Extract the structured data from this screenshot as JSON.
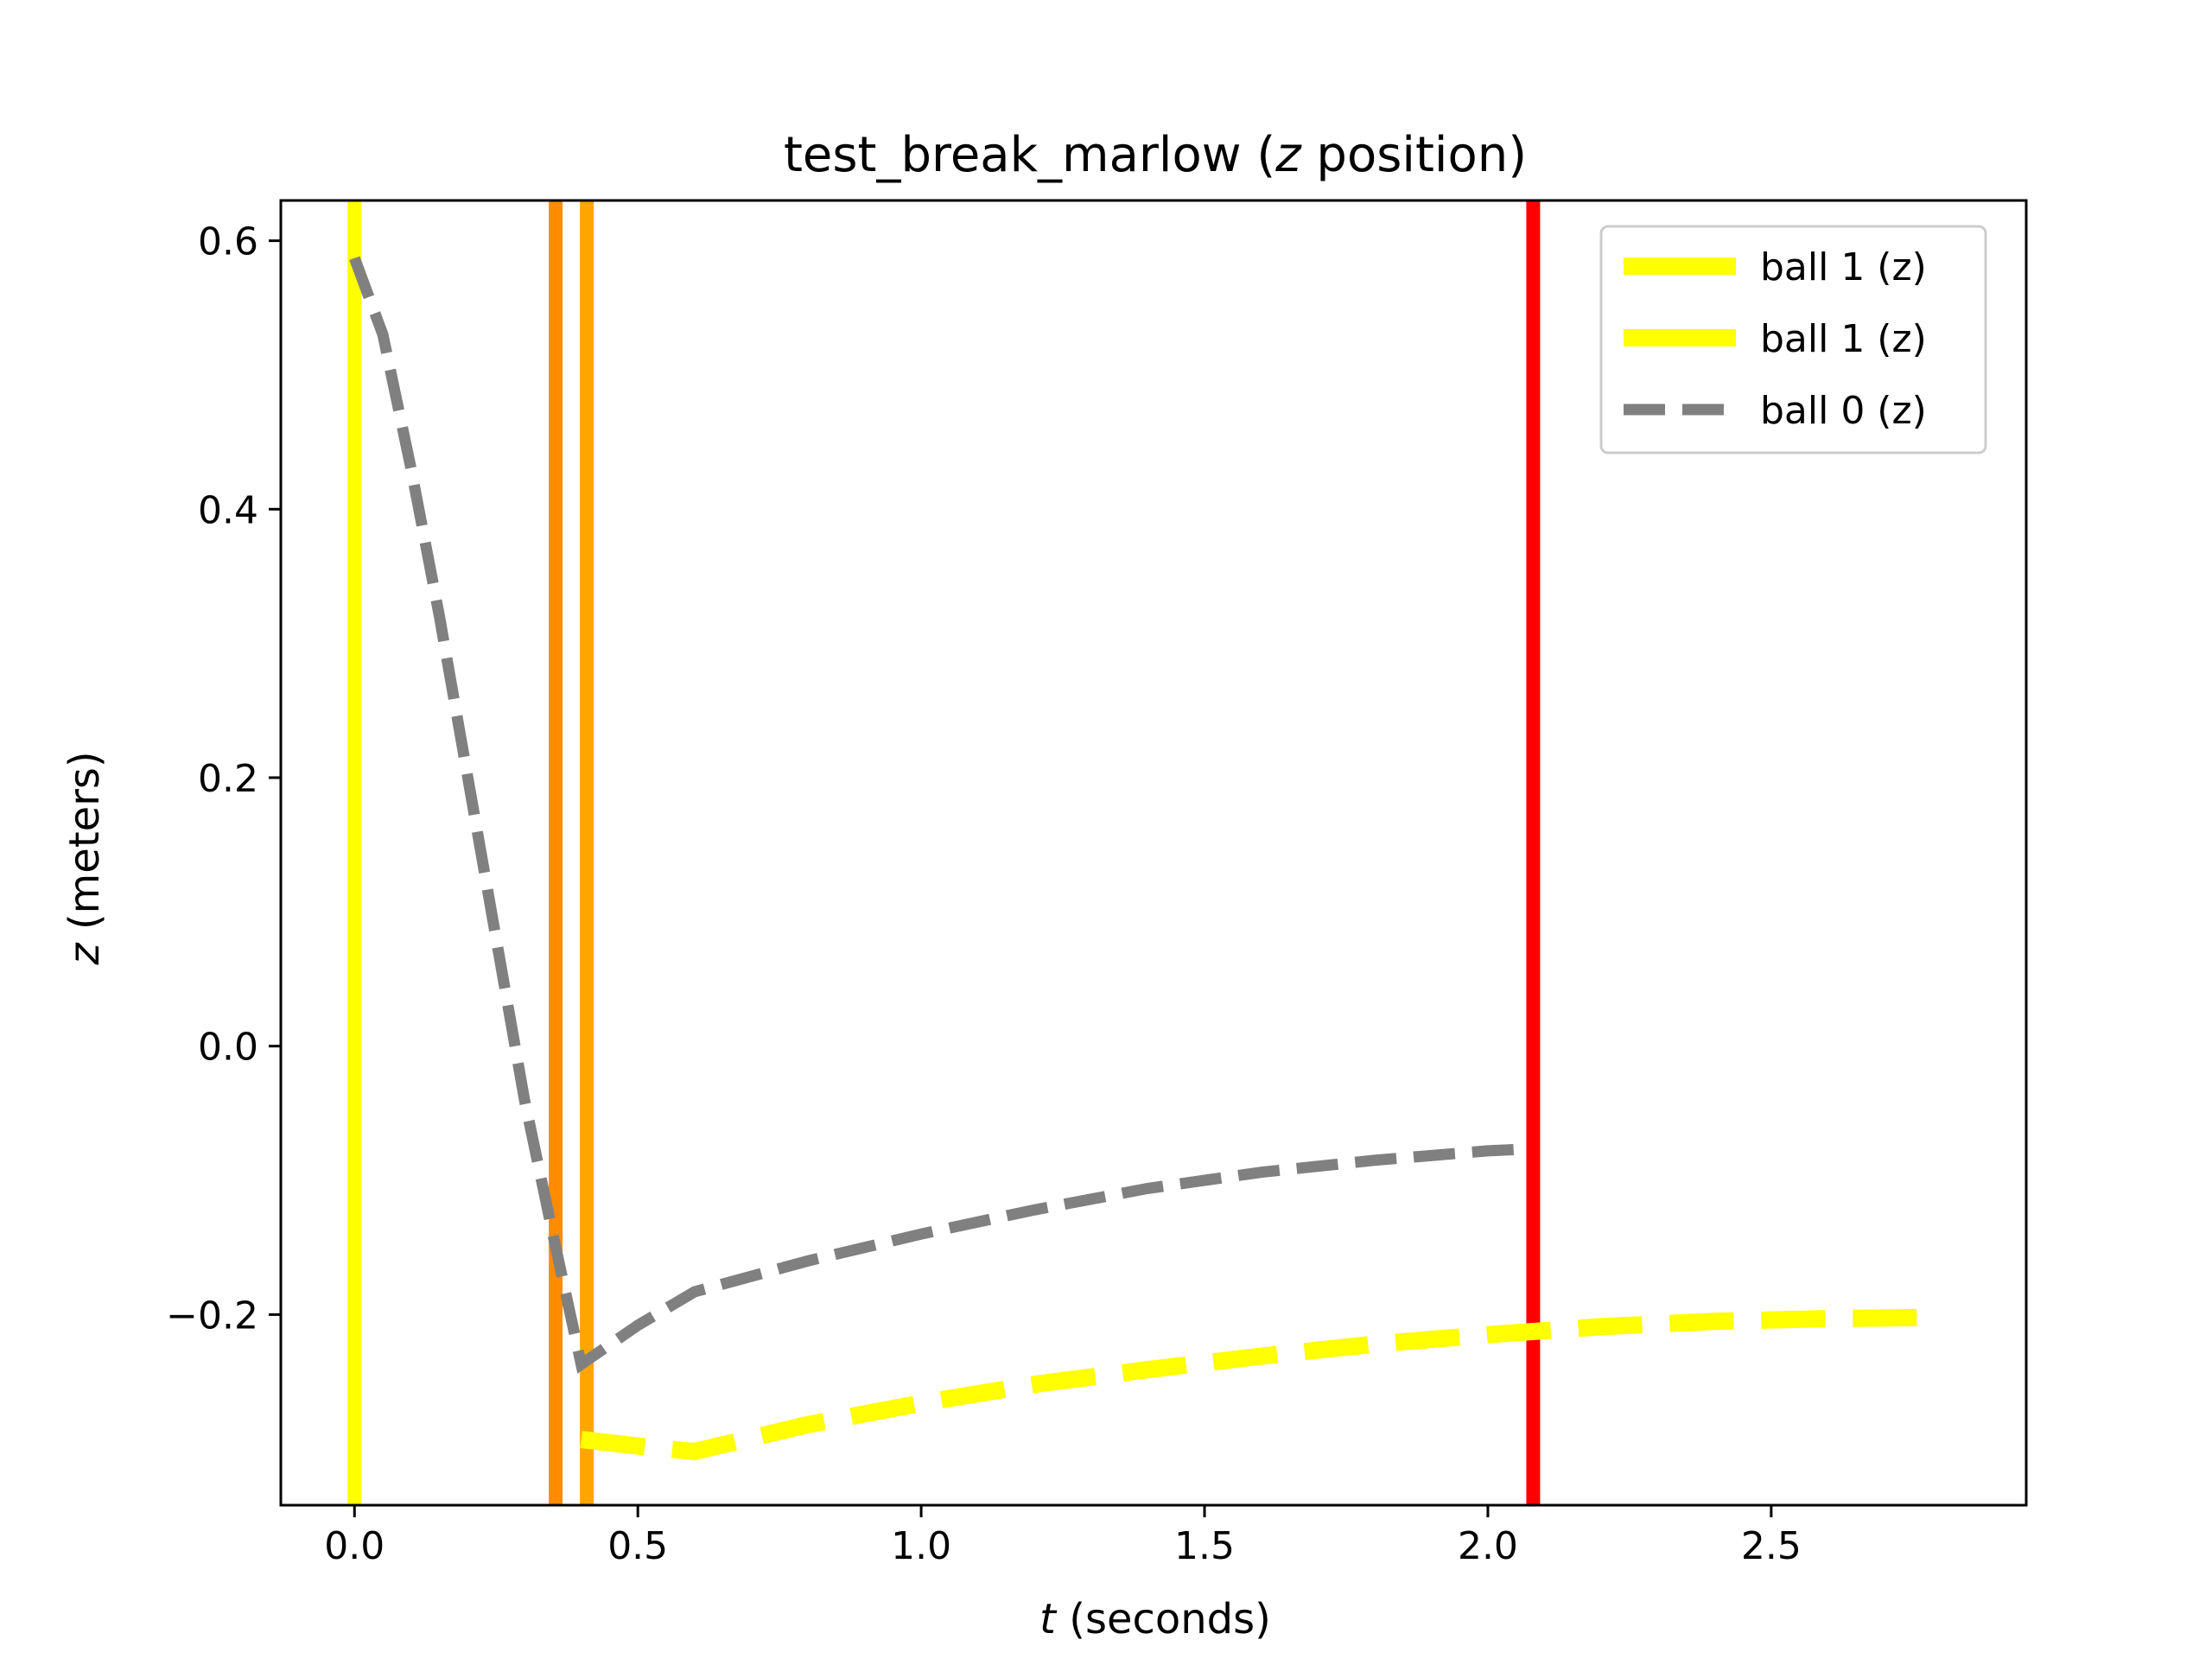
{
  "chart_data": {
    "type": "line",
    "title_main": "test_break_marlow (",
    "title_var": "z",
    "title_tail": " position)",
    "xlabel_var": "t",
    "xlabel_tail": " (seconds)",
    "ylabel_var": "z",
    "ylabel_tail": " (meters)",
    "xlim": [
      -0.13,
      2.95
    ],
    "ylim": [
      -0.342,
      0.63
    ],
    "xticks": [
      0.0,
      0.5,
      1.0,
      1.5,
      2.0,
      2.5
    ],
    "xtick_labels": [
      "0.0",
      "0.5",
      "1.0",
      "1.5",
      "2.0",
      "2.5"
    ],
    "yticks": [
      -0.2,
      0.0,
      0.2,
      0.4,
      0.6
    ],
    "ytick_labels": [
      "−0.2",
      "0.0",
      "0.2",
      "0.4",
      "0.6"
    ],
    "grid": false,
    "legend_position": "top-right",
    "vlines": [
      {
        "x": 0.0,
        "color": "#ffff00"
      },
      {
        "x": 0.355,
        "color": "#ff8c00"
      },
      {
        "x": 0.41,
        "color": "#ffa500"
      },
      {
        "x": 2.08,
        "color": "#ff0000"
      }
    ],
    "series": [
      {
        "name": "ball 1 (z)",
        "color": "#ffff00",
        "style": "dashed-thick",
        "points": []
      },
      {
        "name": "ball 1 (z)",
        "color": "#ffff00",
        "style": "dashed-thick",
        "points": [
          [
            0.4,
            -0.293
          ],
          [
            0.5,
            -0.298
          ],
          [
            0.6,
            -0.302
          ],
          [
            0.8,
            -0.282
          ],
          [
            1.0,
            -0.266
          ],
          [
            1.2,
            -0.252
          ],
          [
            1.4,
            -0.241
          ],
          [
            1.6,
            -0.231
          ],
          [
            1.8,
            -0.222
          ],
          [
            2.0,
            -0.215
          ],
          [
            2.2,
            -0.209
          ],
          [
            2.4,
            -0.205
          ],
          [
            2.6,
            -0.203
          ],
          [
            2.8,
            -0.202
          ]
        ]
      },
      {
        "name": "ball 0 (z)",
        "color": "#808080",
        "style": "dashed",
        "points": [
          [
            0.0,
            0.587
          ],
          [
            0.05,
            0.53
          ],
          [
            0.1,
            0.43
          ],
          [
            0.15,
            0.32
          ],
          [
            0.2,
            0.2
          ],
          [
            0.25,
            0.08
          ],
          [
            0.3,
            -0.04
          ],
          [
            0.35,
            -0.14
          ],
          [
            0.4,
            -0.237
          ],
          [
            0.5,
            -0.208
          ],
          [
            0.6,
            -0.183
          ],
          [
            0.8,
            -0.16
          ],
          [
            1.0,
            -0.14
          ],
          [
            1.2,
            -0.122
          ],
          [
            1.4,
            -0.106
          ],
          [
            1.6,
            -0.094
          ],
          [
            1.8,
            -0.085
          ],
          [
            2.0,
            -0.078
          ],
          [
            2.05,
            -0.077
          ]
        ]
      }
    ]
  }
}
